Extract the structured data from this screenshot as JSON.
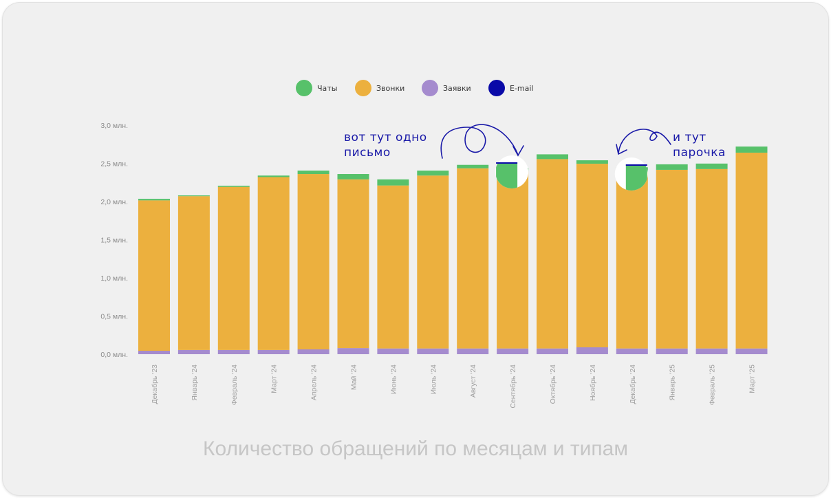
{
  "chart_data": {
    "type": "bar",
    "stacked": true,
    "title": "Количество обращений по месяцам и типам",
    "legend_position": "top",
    "grid": false,
    "ylim": [
      0,
      3.0
    ],
    "yticks": [
      "0,0 млн.",
      "0,5 млн.",
      "1,0 млн.",
      "1,5 млн.",
      "2,0 млн.",
      "2,5 млн.",
      "3,0 млн."
    ],
    "categories": [
      "Декабрь '23",
      "Январь '24",
      "Февраль '24",
      "Март '24",
      "Апрель '24",
      "Май '24",
      "Июнь '24",
      "Июль '24",
      "Август '24",
      "Сентябрь '24",
      "Октябрь '24",
      "Ноябрь '24",
      "Декабрь '24",
      "Январь '25",
      "Февраль '25",
      "Март '25"
    ],
    "series": [
      {
        "name": "Заявки",
        "color": "#a58bce",
        "values": [
          0.045,
          0.055,
          0.055,
          0.055,
          0.063,
          0.08,
          0.075,
          0.075,
          0.075,
          0.075,
          0.075,
          0.09,
          0.075,
          0.075,
          0.075,
          0.075
        ]
      },
      {
        "name": "Звонки",
        "color": "#ecb03e",
        "values": [
          1.97,
          2.015,
          2.137,
          2.265,
          2.297,
          2.21,
          2.135,
          2.265,
          2.36,
          2.32,
          2.48,
          2.405,
          2.31,
          2.34,
          2.35,
          2.565
        ]
      },
      {
        "name": "Чаты",
        "color": "#57c16a",
        "values": [
          0.02,
          0.01,
          0.015,
          0.02,
          0.045,
          0.07,
          0.08,
          0.065,
          0.045,
          0.045,
          0.063,
          0.045,
          0.063,
          0.072,
          0.072,
          0.08
        ]
      },
      {
        "name": "E-mail",
        "color": "#0a0aa8",
        "values": [
          0,
          0,
          0,
          0,
          0,
          0,
          0,
          0,
          0,
          0.0001,
          0,
          0,
          0.0002,
          0,
          0,
          0
        ]
      }
    ],
    "legend_order": [
      "Чаты",
      "Звонки",
      "Заявки",
      "E-mail"
    ],
    "annotations": [
      {
        "text": "вот тут одно письмо",
        "target": "Сентябрь '24"
      },
      {
        "text": "и тут парочка",
        "target": "Декабрь '24"
      }
    ]
  }
}
